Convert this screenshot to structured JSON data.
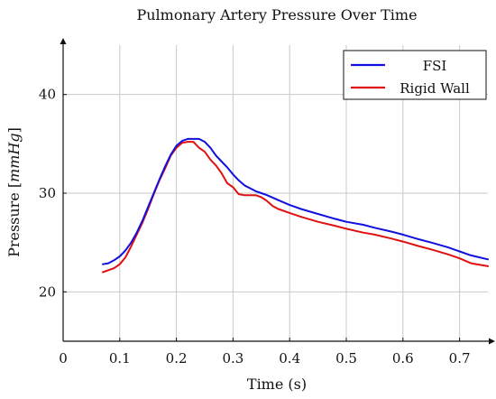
{
  "chart_data": {
    "type": "line",
    "title": "Pulmonary Artery Pressure Over Time",
    "xlabel": "Time (s)",
    "ylabel_main": "Pressure [",
    "ylabel_unit": "mmHg",
    "ylabel_close": "]",
    "xlim": [
      0,
      0.75
    ],
    "ylim": [
      15,
      45
    ],
    "xticks": [
      0,
      0.1,
      0.2,
      0.3,
      0.4,
      0.5,
      0.6,
      0.7
    ],
    "xtick_labels": [
      "0",
      "0.1",
      "0.2",
      "0.3",
      "0.4",
      "0.5",
      "0.6",
      "0.7"
    ],
    "yticks": [
      20,
      30,
      40
    ],
    "ytick_labels": [
      "20",
      "30",
      "40"
    ],
    "grid": true,
    "legend_position": "top-right",
    "series": [
      {
        "name": "FSI",
        "color": "#1010e0",
        "x": [
          0.07,
          0.08,
          0.09,
          0.1,
          0.11,
          0.12,
          0.13,
          0.14,
          0.15,
          0.16,
          0.17,
          0.18,
          0.19,
          0.2,
          0.21,
          0.22,
          0.23,
          0.24,
          0.25,
          0.26,
          0.27,
          0.28,
          0.29,
          0.3,
          0.31,
          0.32,
          0.33,
          0.34,
          0.35,
          0.36,
          0.38,
          0.4,
          0.42,
          0.45,
          0.48,
          0.5,
          0.53,
          0.55,
          0.58,
          0.6,
          0.63,
          0.65,
          0.68,
          0.7,
          0.72,
          0.75
        ],
        "y": [
          22.8,
          22.9,
          23.2,
          23.6,
          24.2,
          25.0,
          26.0,
          27.2,
          28.6,
          30.0,
          31.4,
          32.7,
          33.9,
          34.8,
          35.3,
          35.5,
          35.5,
          35.5,
          35.2,
          34.6,
          33.8,
          33.2,
          32.6,
          31.9,
          31.3,
          30.8,
          30.5,
          30.2,
          30.0,
          29.8,
          29.3,
          28.8,
          28.4,
          27.9,
          27.4,
          27.1,
          26.8,
          26.5,
          26.1,
          25.8,
          25.3,
          25.0,
          24.5,
          24.1,
          23.7,
          23.3
        ]
      },
      {
        "name": "Rigid Wall",
        "color": "#e01010",
        "x": [
          0.07,
          0.08,
          0.09,
          0.1,
          0.11,
          0.12,
          0.13,
          0.14,
          0.15,
          0.16,
          0.17,
          0.18,
          0.19,
          0.2,
          0.21,
          0.22,
          0.23,
          0.24,
          0.25,
          0.26,
          0.27,
          0.28,
          0.29,
          0.3,
          0.31,
          0.32,
          0.33,
          0.34,
          0.35,
          0.36,
          0.37,
          0.38,
          0.4,
          0.42,
          0.45,
          0.48,
          0.5,
          0.53,
          0.55,
          0.58,
          0.6,
          0.63,
          0.65,
          0.68,
          0.7,
          0.72,
          0.75
        ],
        "y": [
          22.0,
          22.2,
          22.4,
          22.8,
          23.5,
          24.6,
          25.8,
          27.0,
          28.4,
          29.9,
          31.3,
          32.5,
          33.8,
          34.6,
          35.1,
          35.2,
          35.2,
          34.6,
          34.2,
          33.4,
          32.8,
          32.0,
          31.0,
          30.6,
          29.9,
          29.8,
          29.8,
          29.8,
          29.6,
          29.2,
          28.7,
          28.4,
          28.0,
          27.6,
          27.1,
          26.7,
          26.4,
          26.0,
          25.8,
          25.4,
          25.1,
          24.6,
          24.3,
          23.8,
          23.4,
          22.9,
          22.6
        ]
      }
    ]
  }
}
